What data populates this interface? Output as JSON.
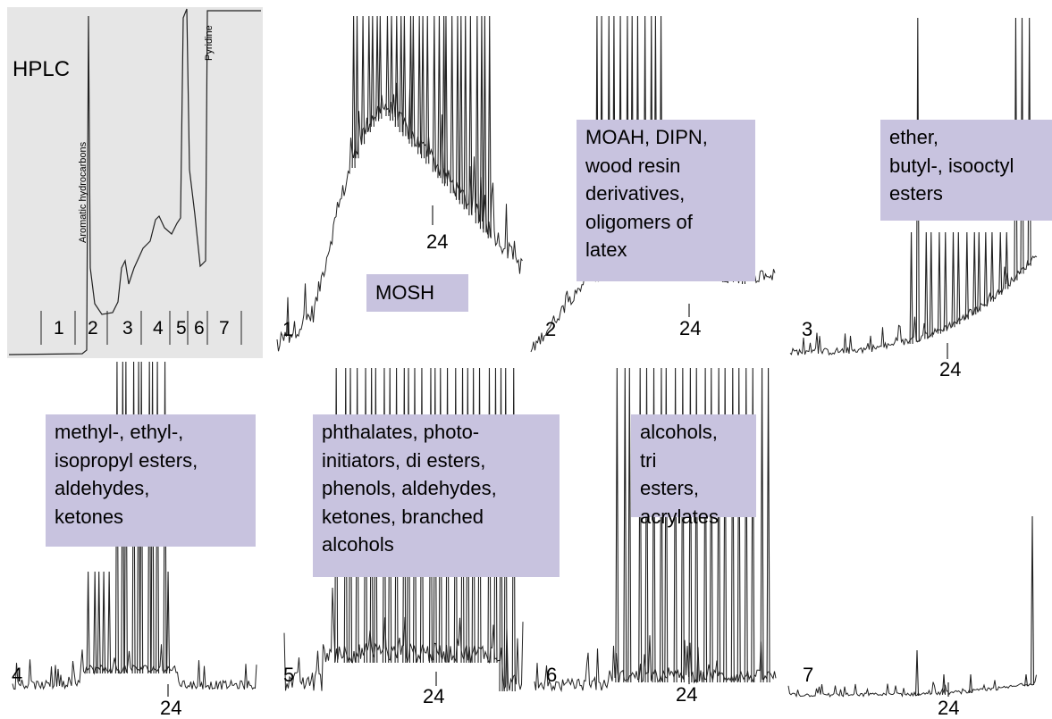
{
  "hplc": {
    "title": "HPLC",
    "aromatic_label": "Aromatic hydrocarbons",
    "pyridine_label": "Pyridine",
    "fractions": [
      "1",
      "2",
      "3",
      "4",
      "5",
      "6",
      "7"
    ]
  },
  "chromatograms": [
    {
      "number": "1",
      "marker": "24",
      "box": "MOSH"
    },
    {
      "number": "2",
      "marker": "24",
      "box": "MOAH, DIPN,\nwood resin\nderivatives,\noligomers of\nlatex"
    },
    {
      "number": "3",
      "marker": "24",
      "box": "ether,\nbutyl-, isooctyl\nesters"
    },
    {
      "number": "4",
      "marker": "24",
      "box": "methyl-, ethyl-,\nisopropyl esters,\naldehydes,\nketones"
    },
    {
      "number": "5",
      "marker": "24",
      "box": "phthalates, photo-\ninitiators, di esters,\nphenols, aldehydes,\nketones, branched\nalcohols"
    },
    {
      "number": "6",
      "marker": "24",
      "box": "alcohols,\ntri\nesters,\nacrylates"
    },
    {
      "number": "7",
      "marker": "24"
    }
  ],
  "colors": {
    "box_fill": "#c8c3df",
    "panel_fill": "#e6e6e6",
    "trace": "#222222"
  }
}
